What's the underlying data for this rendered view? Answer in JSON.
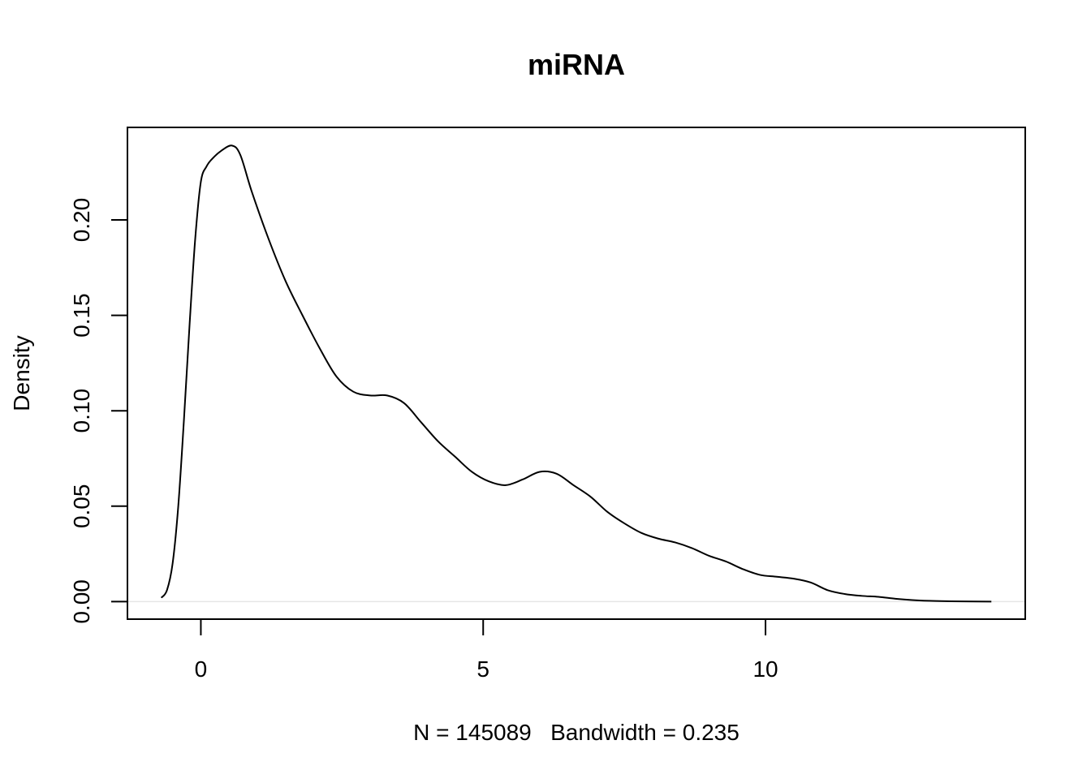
{
  "chart_data": {
    "type": "line",
    "title": "miRNA",
    "xlabel": "N = 145089   Bandwidth = 0.235",
    "ylabel": "Density",
    "xlim": [
      -1.3,
      14.6
    ],
    "ylim": [
      -0.0092,
      0.2485
    ],
    "x_ticks": [
      0,
      5,
      10
    ],
    "x_tick_labels": [
      "0",
      "5",
      "10"
    ],
    "y_ticks": [
      0.0,
      0.05,
      0.1,
      0.15,
      0.2
    ],
    "y_tick_labels": [
      "0.00",
      "0.05",
      "0.10",
      "0.15",
      "0.20"
    ],
    "zero_line": true,
    "grid": false,
    "legend": "none",
    "series": [
      {
        "color": "#000000",
        "x": [
          -0.7,
          -0.6,
          -0.5,
          -0.4,
          -0.3,
          -0.2,
          -0.1,
          0.0,
          0.1,
          0.2,
          0.35,
          0.55,
          0.7,
          0.9,
          1.2,
          1.5,
          1.8,
          2.1,
          2.4,
          2.7,
          3.0,
          3.3,
          3.6,
          3.9,
          4.2,
          4.5,
          4.8,
          5.1,
          5.4,
          5.7,
          6.0,
          6.3,
          6.6,
          6.9,
          7.2,
          7.5,
          7.8,
          8.1,
          8.4,
          8.7,
          9.0,
          9.3,
          9.6,
          9.9,
          10.2,
          10.5,
          10.8,
          11.1,
          11.4,
          11.7,
          12.0,
          12.3,
          12.6,
          12.9,
          13.2,
          13.5,
          14.0
        ],
        "y": [
          0.002,
          0.006,
          0.02,
          0.05,
          0.095,
          0.145,
          0.19,
          0.22,
          0.228,
          0.232,
          0.236,
          0.239,
          0.234,
          0.215,
          0.19,
          0.168,
          0.15,
          0.133,
          0.118,
          0.11,
          0.108,
          0.108,
          0.104,
          0.094,
          0.084,
          0.076,
          0.068,
          0.063,
          0.061,
          0.064,
          0.068,
          0.067,
          0.061,
          0.055,
          0.047,
          0.041,
          0.036,
          0.033,
          0.031,
          0.028,
          0.024,
          0.021,
          0.017,
          0.014,
          0.013,
          0.012,
          0.01,
          0.006,
          0.004,
          0.003,
          0.0025,
          0.0015,
          0.0008,
          0.0004,
          0.0002,
          0.0001,
          0.0
        ]
      }
    ]
  }
}
